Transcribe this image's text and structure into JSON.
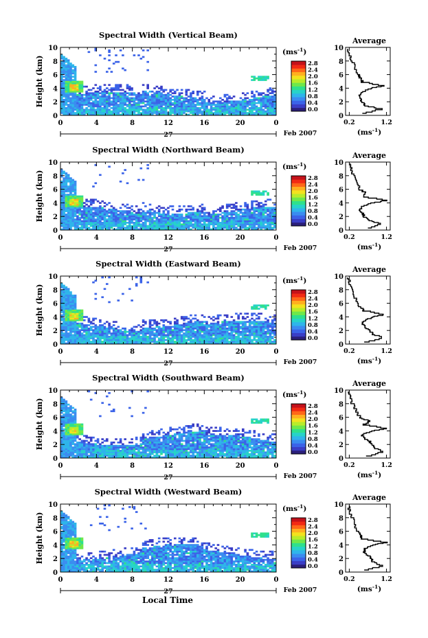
{
  "colors": {
    "colorbar": [
      "#2b1f7a",
      "#3a3ec6",
      "#3b63e8",
      "#3a8cf0",
      "#2fb5ea",
      "#27d3c8",
      "#2fe08c",
      "#6fe84a",
      "#b8ec2a",
      "#f3e21e",
      "#ffb020",
      "#ff6818",
      "#f22a14",
      "#c4121a"
    ],
    "axis": "#000000"
  },
  "common": {
    "xlabel": "Local Time",
    "date_center": "27",
    "date_right": "Feb 2007",
    "ylabel": "Height (km)",
    "units_label": "(ms",
    "units_exp": "-1",
    "units_close": ")",
    "avg_title": "Average",
    "avg_xlabel": "(ms",
    "avg_xlabel_exp": "-1",
    "avg_xlabel_close": ")"
  },
  "chart_data": [
    {
      "type": "heatmap",
      "title": "Spectral Width (Vertical Beam)",
      "x_ticks": [
        "0",
        "4",
        "8",
        "12",
        "16",
        "20",
        "0"
      ],
      "y_ticks": [
        "0",
        "2",
        "4",
        "6",
        "8",
        "10"
      ],
      "xlim": [
        0,
        24
      ],
      "ylim": [
        0,
        10
      ],
      "colorbar_ticks": [
        "0.0",
        "0.4",
        "0.8",
        "1.2",
        "1.6",
        "2.0",
        "2.4",
        "2.8"
      ],
      "avg_x_ticks": [
        "0.2",
        "1.2"
      ],
      "avg_profile": {
        "height_km": [
          0.3,
          1,
          1.5,
          2,
          2.5,
          3,
          3.5,
          4,
          4.4,
          5,
          5.5,
          6,
          7,
          8,
          9,
          9.8
        ],
        "width": [
          0.55,
          1.05,
          0.65,
          0.55,
          0.52,
          0.5,
          0.55,
          0.75,
          1.15,
          0.55,
          0.5,
          0.45,
          0.35,
          0.3,
          0.22,
          0.18
        ]
      }
    },
    {
      "type": "heatmap",
      "title": "Spectral Width (Northward Beam)",
      "x_ticks": [
        "0",
        "4",
        "8",
        "12",
        "16",
        "20",
        "0"
      ],
      "y_ticks": [
        "0",
        "2",
        "4",
        "6",
        "8",
        "10"
      ],
      "xlim": [
        0,
        24
      ],
      "ylim": [
        0,
        10
      ],
      "colorbar_ticks": [
        "0.0",
        "0.4",
        "0.8",
        "1.2",
        "1.6",
        "2.0",
        "2.4",
        "2.8"
      ],
      "avg_x_ticks": [
        "0.2",
        "1.2"
      ],
      "avg_profile": {
        "height_km": [
          0.3,
          1,
          1.5,
          2,
          2.5,
          3,
          3.5,
          4,
          4.4,
          5,
          5.5,
          6,
          7,
          8,
          9,
          9.8
        ],
        "width": [
          0.7,
          1.05,
          0.75,
          0.6,
          0.55,
          0.5,
          0.55,
          0.8,
          1.2,
          0.6,
          0.65,
          0.5,
          0.4,
          0.35,
          0.25,
          0.2
        ]
      }
    },
    {
      "type": "heatmap",
      "title": "Spectral Width (Eastward Beam)",
      "x_ticks": [
        "0",
        "4",
        "8",
        "12",
        "16",
        "20",
        "0"
      ],
      "y_ticks": [
        "0",
        "2",
        "4",
        "6",
        "8",
        "10"
      ],
      "xlim": [
        0,
        24
      ],
      "ylim": [
        0,
        10
      ],
      "colorbar_ticks": [
        "0.0",
        "0.4",
        "0.8",
        "1.2",
        "1.6",
        "2.0",
        "2.4",
        "2.8"
      ],
      "avg_x_ticks": [
        "0.2",
        "1.2"
      ],
      "avg_profile": {
        "height_km": [
          0.3,
          1,
          1.5,
          2,
          2.5,
          3,
          3.5,
          4,
          4.4,
          5,
          5.5,
          6,
          7,
          8,
          9,
          9.8
        ],
        "width": [
          0.6,
          1.1,
          0.85,
          0.75,
          0.65,
          0.55,
          0.6,
          0.8,
          1.15,
          0.6,
          0.5,
          0.45,
          0.35,
          0.3,
          0.22,
          0.18
        ]
      }
    },
    {
      "type": "heatmap",
      "title": "Spectral Width (Southward Beam)",
      "x_ticks": [
        "0",
        "4",
        "8",
        "12",
        "16",
        "20",
        "0"
      ],
      "y_ticks": [
        "0",
        "2",
        "4",
        "6",
        "8",
        "10"
      ],
      "xlim": [
        0,
        24
      ],
      "ylim": [
        0,
        10
      ],
      "colorbar_ticks": [
        "0.0",
        "0.4",
        "0.8",
        "1.2",
        "1.6",
        "2.0",
        "2.4",
        "2.8"
      ],
      "avg_x_ticks": [
        "0.2",
        "1.2"
      ],
      "avg_profile": {
        "height_km": [
          0.3,
          1,
          1.5,
          2,
          2.5,
          3,
          3.5,
          4,
          4.4,
          5,
          5.5,
          6,
          7,
          8,
          9,
          9.8
        ],
        "width": [
          0.65,
          1.1,
          0.9,
          0.8,
          0.75,
          0.6,
          0.55,
          0.8,
          1.2,
          0.6,
          0.75,
          0.5,
          0.38,
          0.3,
          0.22,
          0.2
        ]
      }
    },
    {
      "type": "heatmap",
      "title": "Spectral Width (Westward Beam)",
      "x_ticks": [
        "0",
        "4",
        "8",
        "12",
        "16",
        "20",
        "0"
      ],
      "y_ticks": [
        "0",
        "2",
        "4",
        "6",
        "8",
        "10"
      ],
      "xlim": [
        0,
        24
      ],
      "ylim": [
        0,
        10
      ],
      "colorbar_ticks": [
        "0.0",
        "0.4",
        "0.8",
        "1.2",
        "1.6",
        "2.0",
        "2.4",
        "2.8"
      ],
      "avg_x_ticks": [
        "0.2",
        "1.2"
      ],
      "avg_profile": {
        "height_km": [
          0.3,
          1,
          1.5,
          2,
          2.5,
          3,
          3.5,
          4,
          4.4,
          5,
          5.5,
          6,
          7,
          8,
          9,
          9.8
        ],
        "width": [
          0.6,
          1.1,
          0.85,
          0.8,
          0.7,
          0.6,
          0.6,
          0.8,
          1.2,
          0.55,
          0.5,
          0.45,
          0.35,
          0.3,
          0.22,
          0.18
        ]
      }
    }
  ]
}
